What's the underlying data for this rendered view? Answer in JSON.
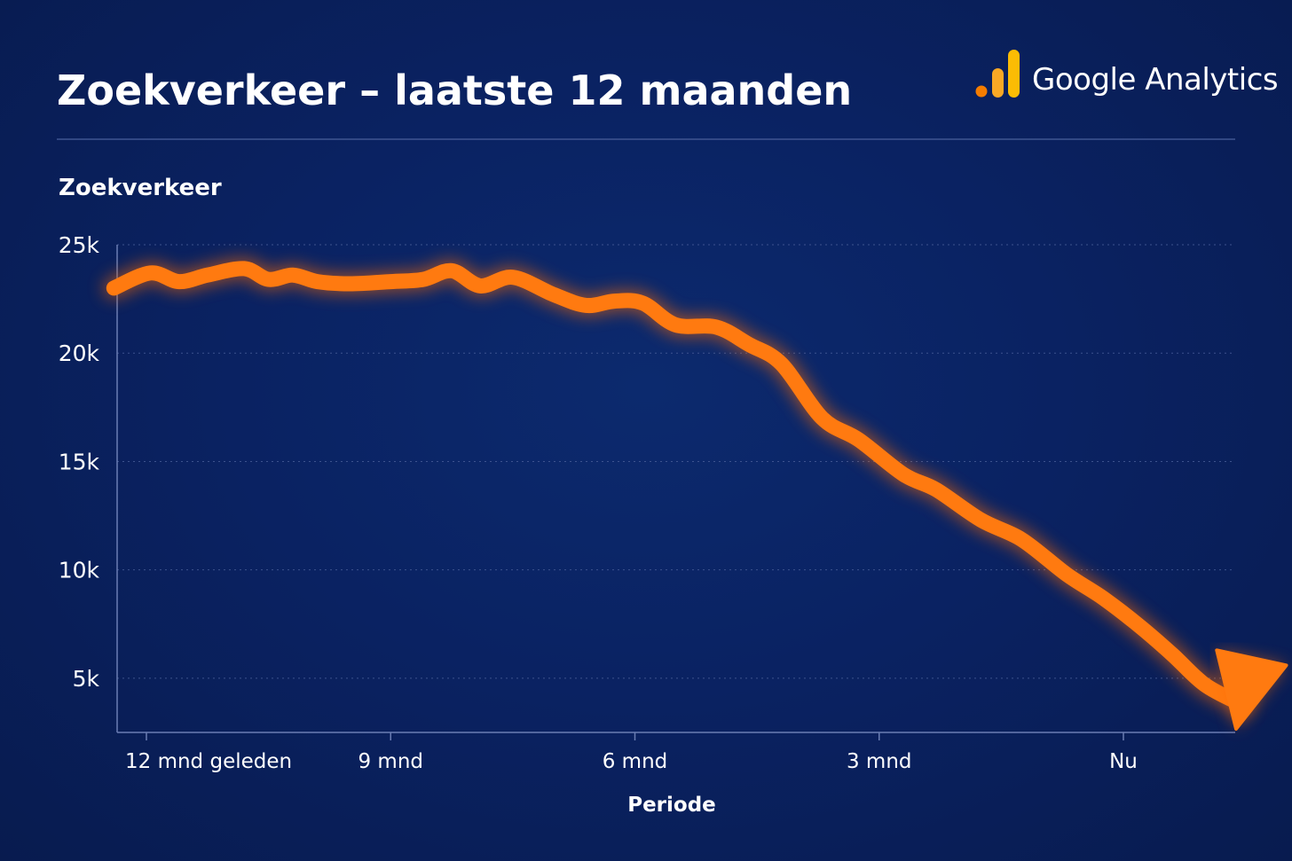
{
  "header": {
    "title": "Zoekverkeer – laatste 12 maanden",
    "brand_name": "Google Analytics",
    "brand_icon": "google-analytics-bars-icon",
    "brand_colors": [
      "#f57c00",
      "#f9a825",
      "#fbbc04"
    ]
  },
  "colors": {
    "line": "#ff7a10",
    "glow": "#ff6a00",
    "background": "#0a2262"
  },
  "chart_data": {
    "type": "line",
    "title": "Zoekverkeer – laatste 12 maanden",
    "ylabel": "Zoekverkeer",
    "xlabel": "Periode",
    "ylim": [
      2500,
      25000
    ],
    "xlim": [
      -0.5,
      14.5
    ],
    "y_ticks": [
      {
        "value": 25000,
        "label": "25k"
      },
      {
        "value": 20000,
        "label": "20k"
      },
      {
        "value": 15000,
        "label": "15k"
      },
      {
        "value": 10000,
        "label": "10k"
      },
      {
        "value": 5000,
        "label": "5k"
      }
    ],
    "x_ticks": [
      {
        "value": 0,
        "label": "12 mnd geleden"
      },
      {
        "value": 3,
        "label": "9 mnd"
      },
      {
        "value": 6,
        "label": "6 mnd"
      },
      {
        "value": 9,
        "label": "3 mnd"
      },
      {
        "value": 12,
        "label": "Nu"
      }
    ],
    "grid": true,
    "legend": "none",
    "end_marker": "arrow",
    "series": [
      {
        "x": [
          -0.4,
          0.05,
          0.4,
          0.75,
          1.2,
          1.5,
          1.8,
          2.1,
          2.5,
          3.0,
          3.4,
          3.75,
          4.1,
          4.5,
          5.0,
          5.4,
          5.75,
          6.1,
          6.5,
          7.0,
          7.4,
          7.8,
          8.3,
          8.75,
          9.3,
          9.7,
          10.25,
          10.75,
          11.3,
          11.75,
          12.2,
          12.6,
          13.0,
          13.45
        ],
        "y": [
          23000,
          23700,
          23300,
          23600,
          23900,
          23400,
          23600,
          23300,
          23200,
          23300,
          23400,
          23800,
          23100,
          23500,
          22700,
          22200,
          22400,
          22300,
          21300,
          21200,
          20400,
          19500,
          17000,
          16000,
          14400,
          13700,
          12300,
          11400,
          9800,
          8700,
          7400,
          6100,
          4700,
          3800
        ]
      }
    ]
  }
}
